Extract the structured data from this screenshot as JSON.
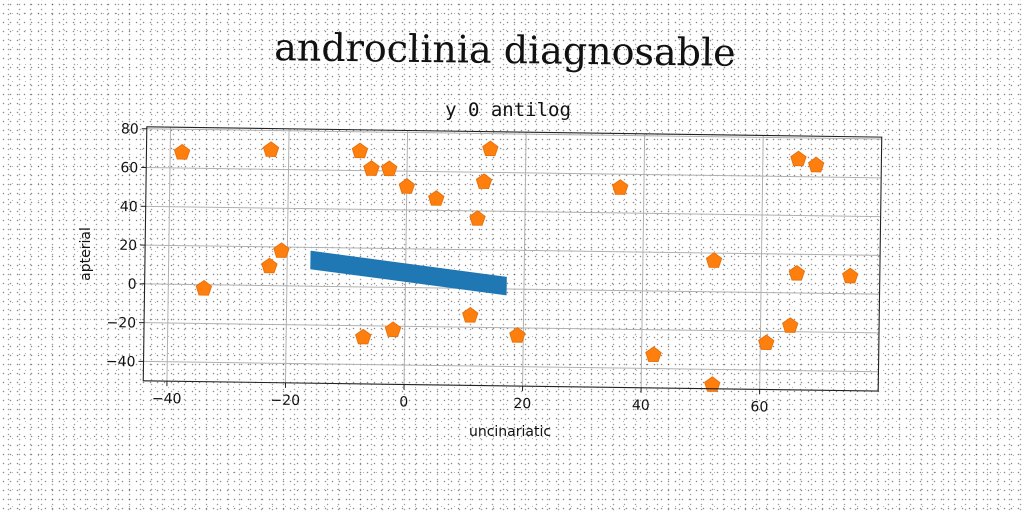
{
  "figure_title": "androclinia diagnosable",
  "colors": {
    "marker": "#ff7f0e",
    "marker_edge": "#e8720c",
    "band": "#1f77b4",
    "grid": "#b0b0b0"
  },
  "chart_data": {
    "type": "scatter",
    "title": "y 0 antilog",
    "xlabel": "uncinariatic",
    "ylabel": "apterial",
    "xlim": [
      -44,
      80
    ],
    "ylim": [
      -50,
      81
    ],
    "grid": true,
    "xticks": [
      -40,
      -20,
      0,
      20,
      40,
      60
    ],
    "yticks": [
      -40,
      -20,
      0,
      20,
      40,
      60,
      80
    ],
    "xtick_labels": [
      "−40",
      "−20",
      "0",
      "20",
      "40",
      "60"
    ],
    "ytick_labels": [
      "−40",
      "−20",
      "0",
      "20",
      "40",
      "60",
      "80"
    ],
    "band": {
      "x": [
        -16,
        17
      ],
      "y_top": [
        18,
        6
      ],
      "y_bottom": [
        9,
        -3
      ]
    },
    "points": {
      "marker": "pentagon",
      "x": [
        -38,
        -23,
        -8,
        -6,
        -3,
        0,
        5,
        14,
        13,
        12,
        36,
        66,
        69,
        -21,
        -23,
        -34,
        11,
        -2,
        -7,
        19,
        42,
        52,
        61,
        65,
        52,
        66,
        75
      ],
      "y": [
        68,
        70,
        70,
        61,
        61,
        52,
        46,
        72,
        55,
        36,
        53,
        69,
        66,
        18,
        10,
        -2,
        -14,
        -22,
        -26,
        -24,
        -33,
        -48,
        -26,
        -17,
        16,
        10,
        9
      ]
    }
  }
}
